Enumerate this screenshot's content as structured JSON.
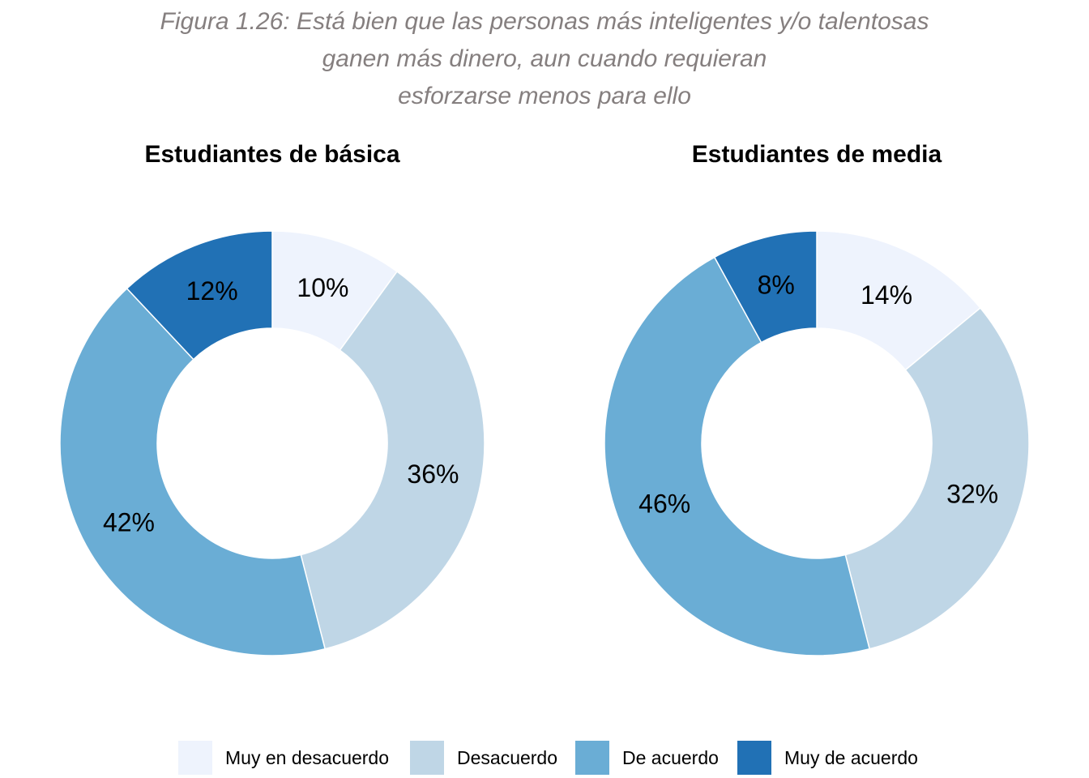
{
  "figure": {
    "title_lines": [
      "Figura 1.26:  Está bien que las personas más inteligentes y/o talentosas",
      "ganen más dinero, aun cuando requieran",
      "esforzarse menos para ello"
    ]
  },
  "chart_data": [
    {
      "type": "pie",
      "title": "Estudiantes de básica",
      "categories": [
        "Muy en desacuerdo",
        "Desacuerdo",
        "De acuerdo",
        "Muy de acuerdo"
      ],
      "values": [
        10,
        36,
        42,
        12
      ],
      "labels": [
        "10%",
        "36%",
        "42%",
        "12%"
      ],
      "colors": [
        "#eef3fd",
        "#bfd6e6",
        "#6aadd5",
        "#2171b5"
      ]
    },
    {
      "type": "pie",
      "title": "Estudiantes de media",
      "categories": [
        "Muy en desacuerdo",
        "Desacuerdo",
        "De acuerdo",
        "Muy de acuerdo"
      ],
      "values": [
        14,
        32,
        46,
        8
      ],
      "labels": [
        "14%",
        "32%",
        "46%",
        "8%"
      ],
      "colors": [
        "#eef3fd",
        "#bfd6e6",
        "#6aadd5",
        "#2171b5"
      ]
    }
  ],
  "legend": {
    "items": [
      {
        "label": "Muy en desacuerdo",
        "color": "#eef3fd"
      },
      {
        "label": "Desacuerdo",
        "color": "#bfd6e6"
      },
      {
        "label": "De acuerdo",
        "color": "#6aadd5"
      },
      {
        "label": "Muy de acuerdo",
        "color": "#2171b5"
      }
    ]
  }
}
